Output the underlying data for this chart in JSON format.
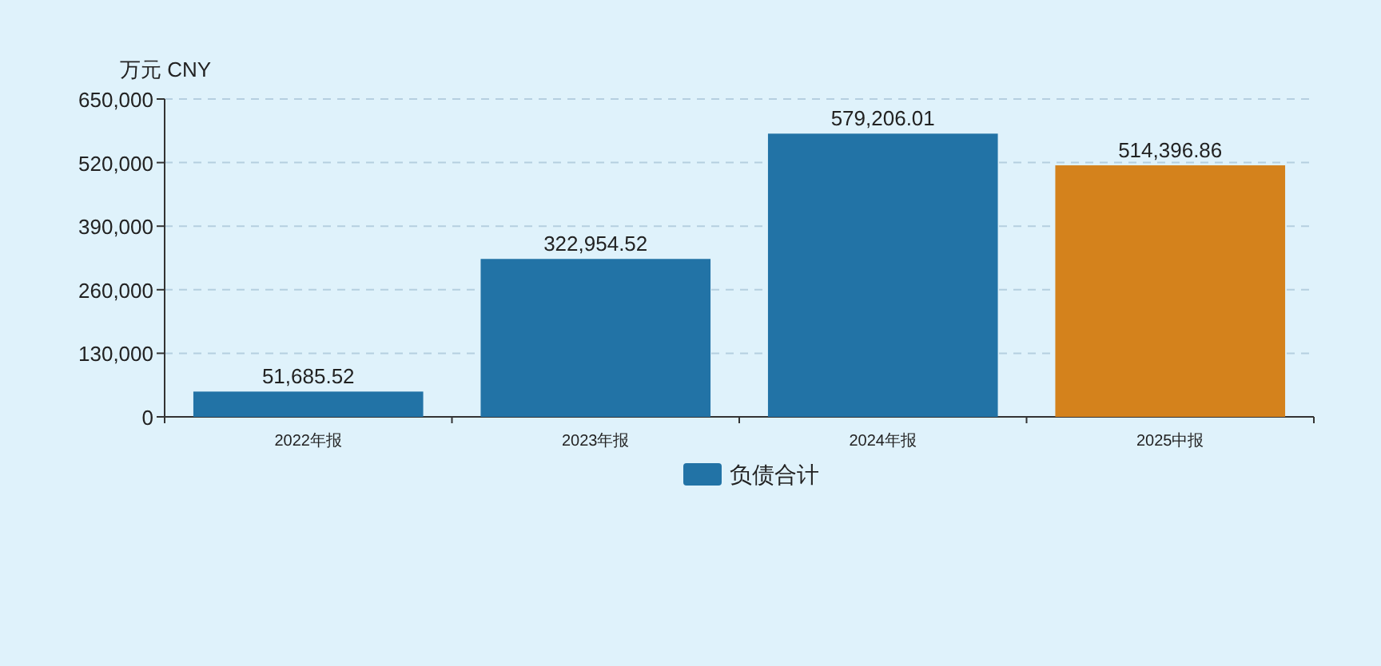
{
  "chart_data": {
    "type": "bar",
    "ylabel": "万元  CNY",
    "categories": [
      "2022年报",
      "2023年报",
      "2024年报",
      "2025中报"
    ],
    "series": [
      {
        "name": "负债合计",
        "color": "#2273a6",
        "colors": [
          "#2273a6",
          "#2273a6",
          "#2273a6",
          "#d4821c"
        ],
        "values": [
          51685.52,
          322954.52,
          579206.01,
          514396.86
        ],
        "value_labels": [
          "51,685.52",
          "322,954.52",
          "579,206.01",
          "514,396.86"
        ]
      }
    ],
    "ylim": [
      0,
      650000
    ],
    "yticks": [
      0,
      {
        "value": 130000,
        "label": "130,000"
      },
      {
        "value": 260000,
        "label": "260,000"
      },
      {
        "value": 390000,
        "label": "390,000"
      },
      {
        "value": 520000,
        "label": "520,000"
      },
      {
        "value": 650000,
        "label": "650,000"
      }
    ],
    "grid": "y",
    "legend": "bottom"
  }
}
